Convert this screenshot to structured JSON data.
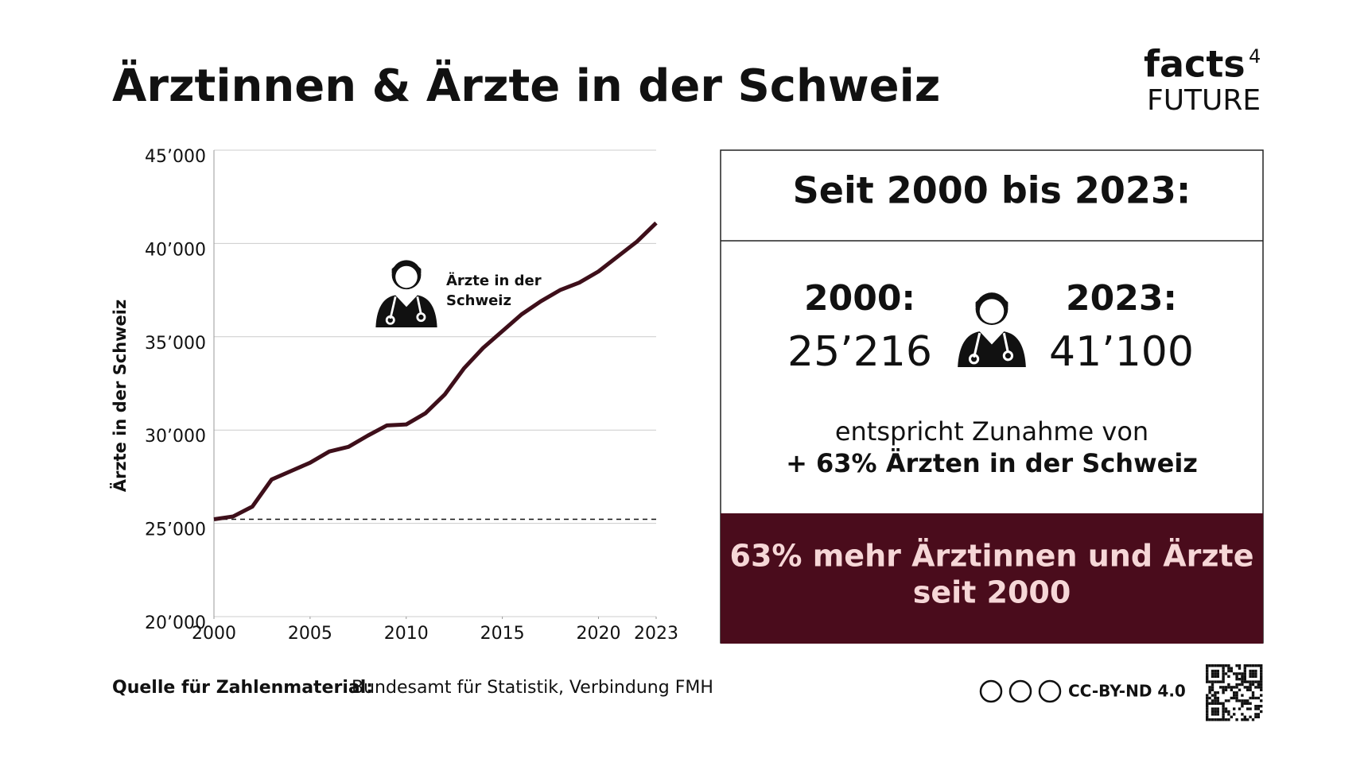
{
  "chart_data": {
    "type": "line",
    "title": "Ärztinnen & Ärzte in der Schweiz",
    "y_label": "Ärzte in der Schweiz",
    "annotation": [
      "Ärzte in der",
      "Schweiz"
    ],
    "x": [
      2000,
      2001,
      2002,
      2003,
      2004,
      2005,
      2006,
      2007,
      2008,
      2009,
      2010,
      2011,
      2012,
      2013,
      2014,
      2015,
      2016,
      2017,
      2018,
      2019,
      2020,
      2021,
      2022,
      2023
    ],
    "series": [
      {
        "name": "Ärzte in der Schweiz",
        "color": "#3e0f1a",
        "values": [
          25216,
          25370,
          25900,
          27350,
          27800,
          28250,
          28850,
          29100,
          29700,
          30250,
          30300,
          30900,
          31900,
          33300,
          34400,
          35300,
          36200,
          36900,
          37500,
          37900,
          38500,
          39300,
          40100,
          41100
        ]
      }
    ],
    "reference_line": 25216,
    "xlim": [
      2000,
      2023
    ],
    "xticks": [
      2000,
      2005,
      2010,
      2015,
      2020,
      2023
    ],
    "ylim": [
      20000,
      45000
    ],
    "yticks": [
      {
        "value": 20000,
        "label": "20’000"
      },
      {
        "value": 25000,
        "label": "25’000"
      },
      {
        "value": 30000,
        "label": "30’000"
      },
      {
        "value": 35000,
        "label": "35’000"
      },
      {
        "value": 40000,
        "label": "40’000"
      },
      {
        "value": 45000,
        "label": "45’000"
      }
    ],
    "grid": true
  },
  "logo": {
    "word": "facts",
    "sup": "4",
    "sub": "FUTURE"
  },
  "panel": {
    "heading": "Seit 2000 bis 2023:",
    "start_label": "2000:",
    "start_value": "25’216",
    "end_label": "2023:",
    "end_value": "41’100",
    "text": "entspricht Zunahme von",
    "highlight": "+ 63% Ärzten in der Schweiz",
    "banner": [
      "63% mehr Ärztinnen und Ärzte",
      "seit 2000"
    ]
  },
  "footer": {
    "source_label": "Quelle für Zahlenmaterial:",
    "source": "Bundesamt für Statistik, Verbindung FMH",
    "license": "CC-BY-ND 4.0"
  }
}
